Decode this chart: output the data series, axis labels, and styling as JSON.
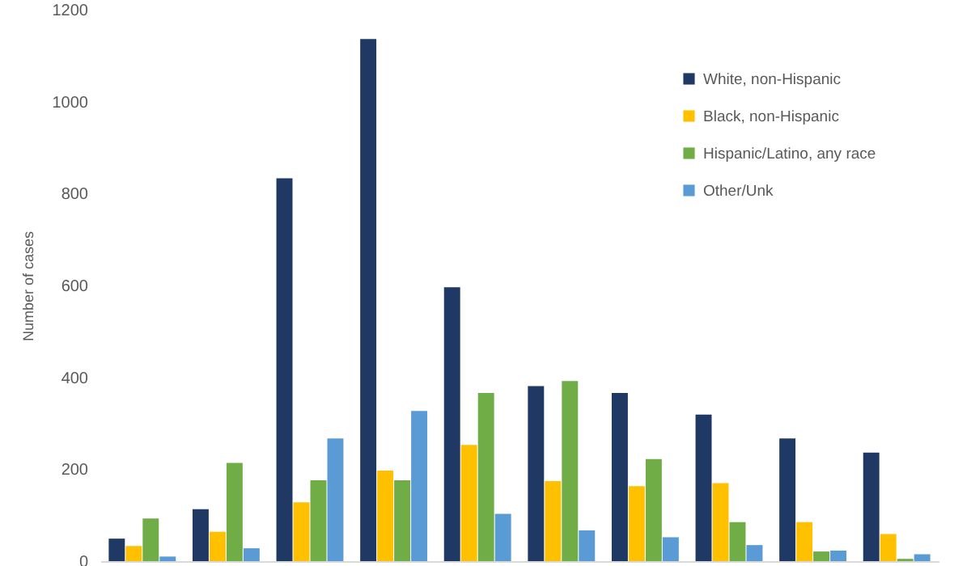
{
  "chart_data": {
    "type": "bar",
    "ylabel": "Number of cases",
    "categories": [
      null,
      null,
      null,
      null,
      null,
      null,
      null,
      null,
      null,
      null
    ],
    "series": [
      {
        "name": "White, non-Hispanic",
        "color": "#203864",
        "values": [
          49,
          113,
          833,
          1136,
          596,
          381,
          366,
          319,
          267,
          236
        ]
      },
      {
        "name": "Black, non-Hispanic",
        "color": "#ffc000",
        "values": [
          33,
          64,
          128,
          197,
          253,
          174,
          163,
          170,
          85,
          59
        ]
      },
      {
        "name": "Hispanic/Latino, any race",
        "color": "#70ad47",
        "values": [
          93,
          214,
          176,
          176,
          366,
          392,
          222,
          85,
          21,
          5
        ]
      },
      {
        "name": "Other/Unk",
        "color": "#5b9bd5",
        "values": [
          10,
          28,
          267,
          327,
          103,
          67,
          52,
          35,
          23,
          15
        ]
      }
    ],
    "ylim": [
      0,
      1200
    ],
    "yticks": [
      0,
      200,
      400,
      600,
      800,
      1000,
      1200
    ],
    "legend": "top right",
    "tick_labels": "y"
  }
}
